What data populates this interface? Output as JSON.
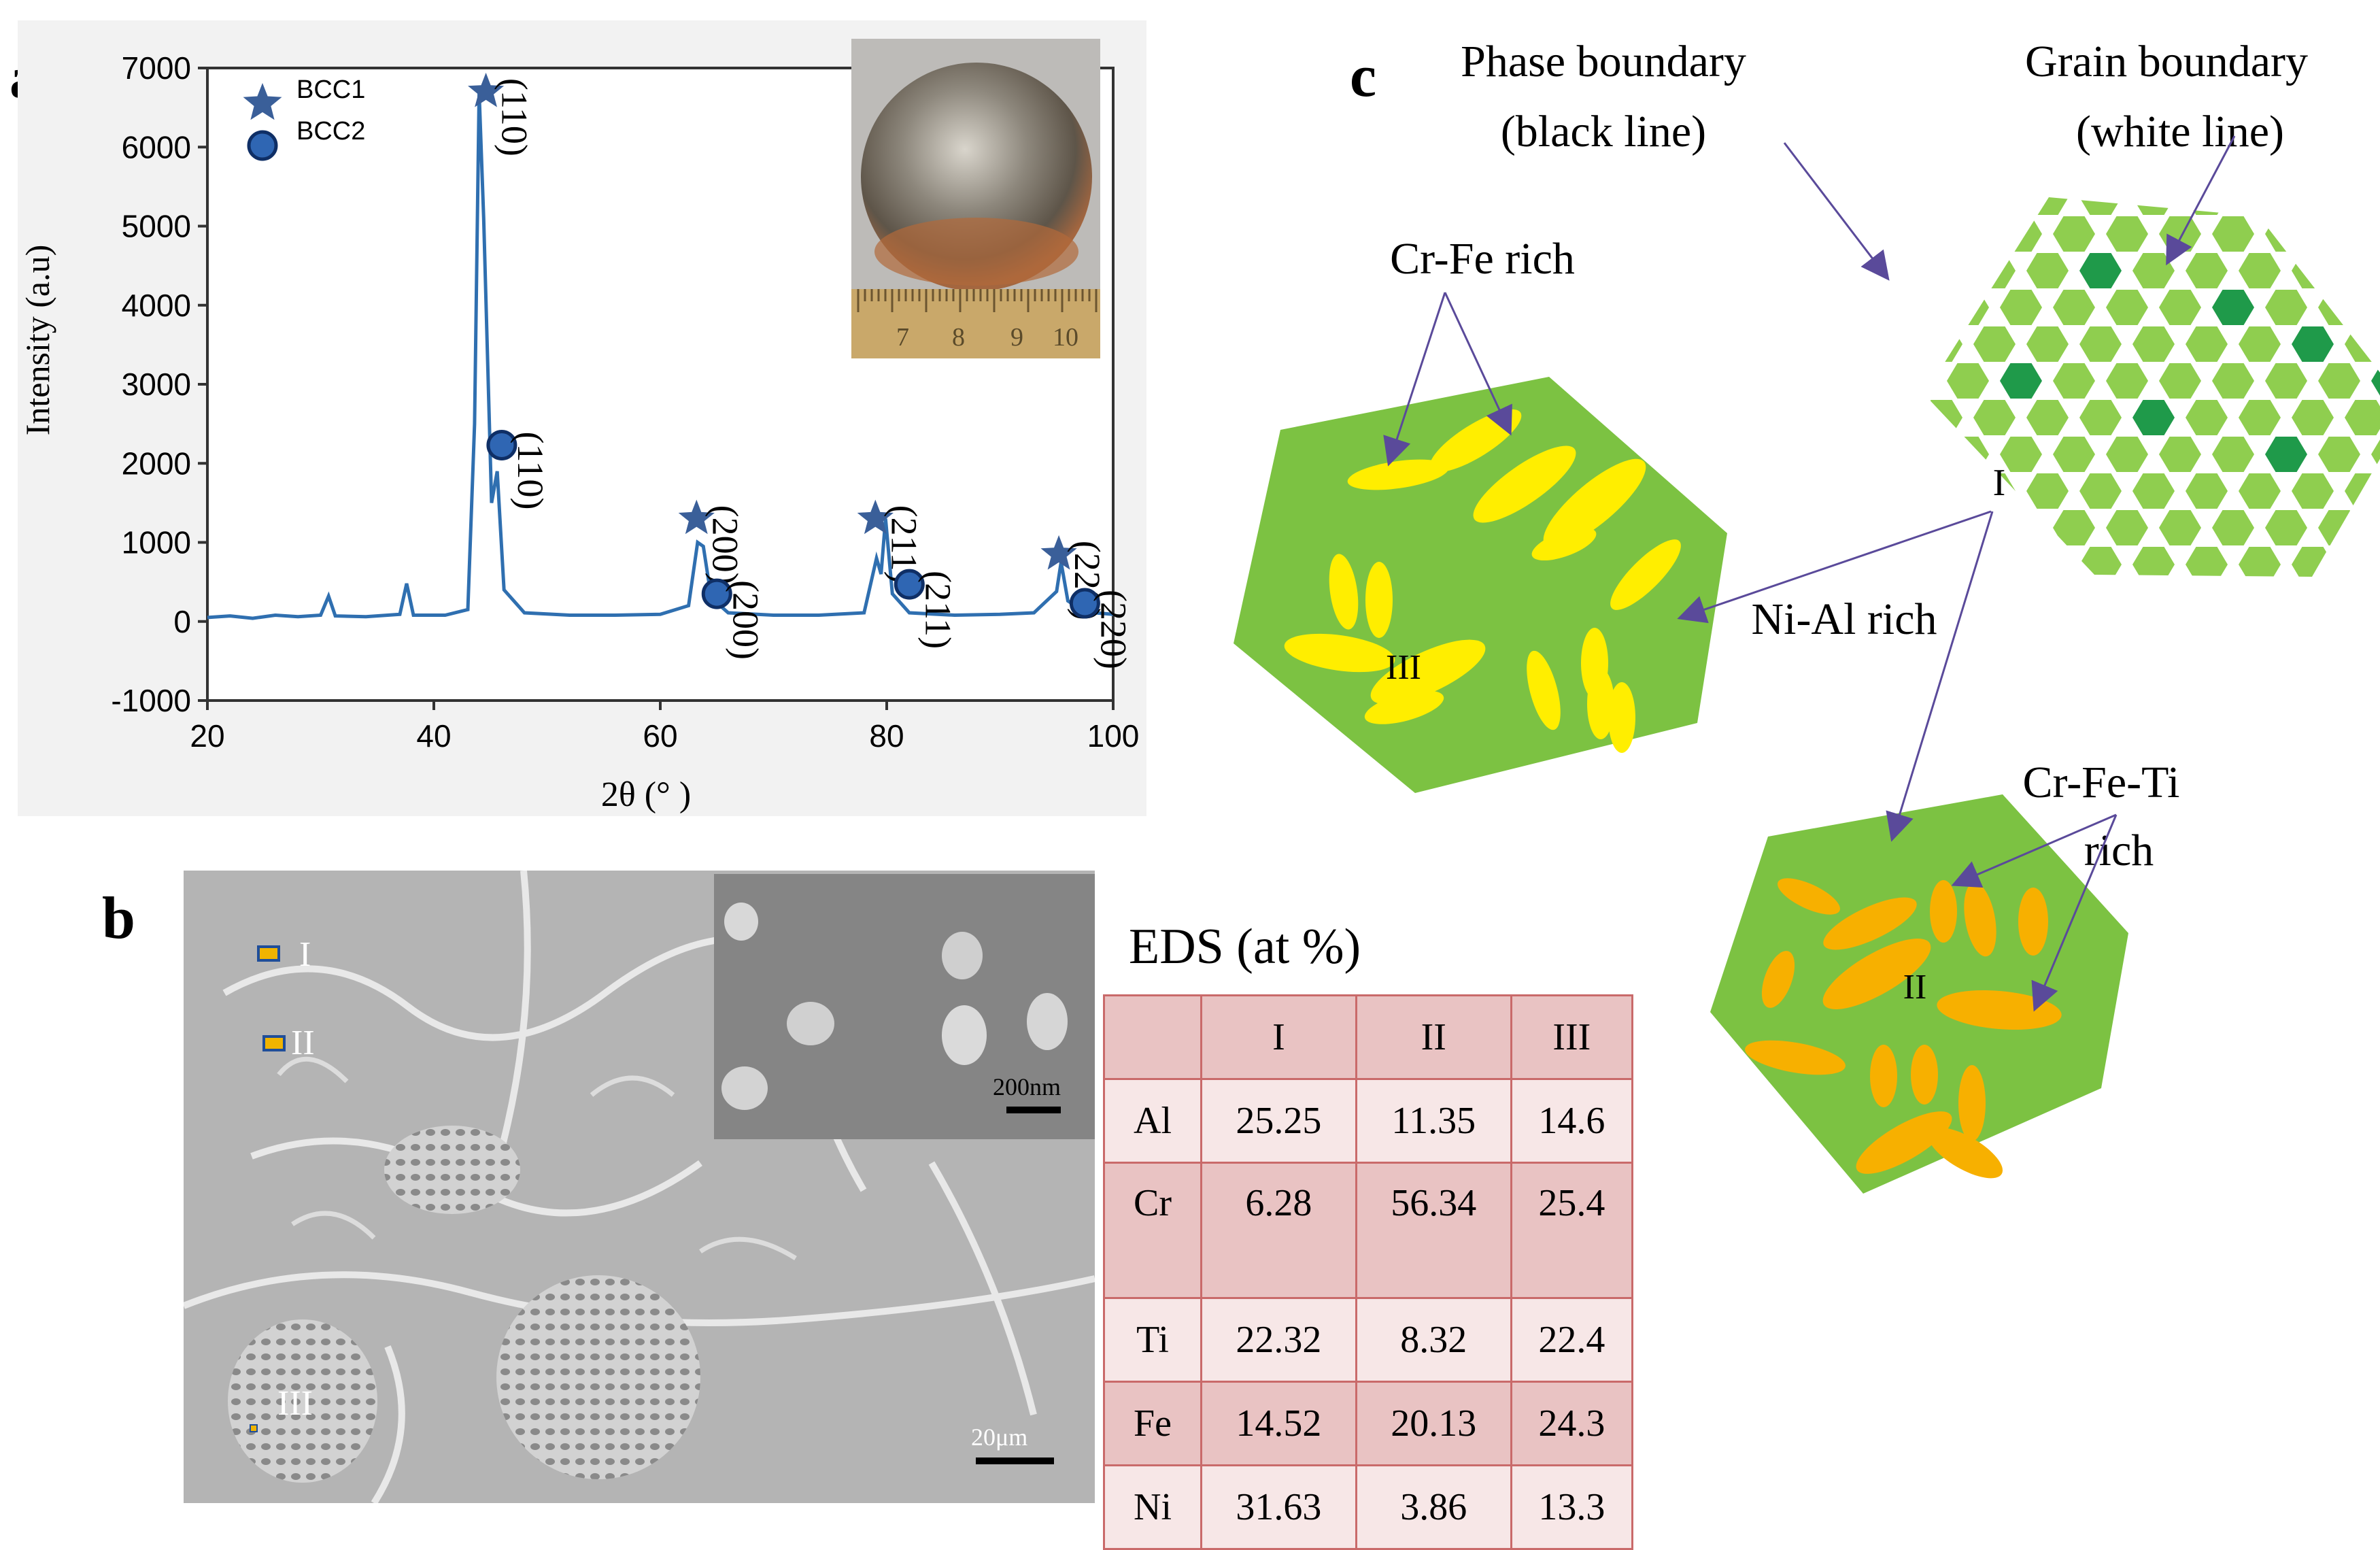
{
  "panels": {
    "a": "a",
    "b": "b",
    "c": "c"
  },
  "chart_data": {
    "type": "line",
    "xlabel": "2θ (° )",
    "ylabel": "Intensity (a.u)",
    "xlim": [
      20,
      100
    ],
    "ylim": [
      -1000,
      7000
    ],
    "xticks": [
      20,
      40,
      60,
      80,
      100
    ],
    "yticks": [
      -1000,
      0,
      1000,
      2000,
      3000,
      4000,
      5000,
      6000,
      7000
    ],
    "line_color": "#2f6fb0",
    "grid": false,
    "legend_position": "top-left",
    "legend": [
      {
        "name": "BCC1",
        "marker": "star-icon",
        "color": "#3a5f99"
      },
      {
        "name": "BCC2",
        "marker": "circle-icon",
        "color": "#2f66b3"
      }
    ],
    "series": [
      {
        "points": [
          [
            20,
            50
          ],
          [
            22,
            70
          ],
          [
            24,
            40
          ],
          [
            26,
            80
          ],
          [
            28,
            60
          ],
          [
            30,
            80
          ],
          [
            30.7,
            320
          ],
          [
            31.3,
            70
          ],
          [
            34,
            60
          ],
          [
            37,
            90
          ],
          [
            37.6,
            480
          ],
          [
            38.2,
            80
          ],
          [
            41,
            80
          ],
          [
            43.0,
            150
          ],
          [
            43.6,
            2500
          ],
          [
            44.0,
            6700
          ],
          [
            44.4,
            5100
          ],
          [
            45.1,
            1500
          ],
          [
            45.6,
            1900
          ],
          [
            46.2,
            400
          ],
          [
            48,
            110
          ],
          [
            52,
            80
          ],
          [
            56,
            80
          ],
          [
            60,
            90
          ],
          [
            62.5,
            200
          ],
          [
            63.3,
            1000
          ],
          [
            63.8,
            950
          ],
          [
            64.5,
            300
          ],
          [
            66,
            110
          ],
          [
            70,
            80
          ],
          [
            74,
            80
          ],
          [
            78,
            110
          ],
          [
            79.1,
            800
          ],
          [
            79.5,
            600
          ],
          [
            79.9,
            1300
          ],
          [
            80.5,
            350
          ],
          [
            82,
            110
          ],
          [
            86,
            80
          ],
          [
            90,
            90
          ],
          [
            93,
            110
          ],
          [
            95.0,
            380
          ],
          [
            95.4,
            750
          ],
          [
            96.0,
            260
          ],
          [
            97.5,
            120
          ],
          [
            100,
            90
          ]
        ]
      }
    ],
    "markers": [
      {
        "phase": "BCC1",
        "x": 44.6,
        "y": 6700,
        "label": "(110)"
      },
      {
        "phase": "BCC2",
        "x": 46.0,
        "y": 2230,
        "label": "(110)"
      },
      {
        "phase": "BCC1",
        "x": 63.2,
        "y": 1300,
        "label": "(200)"
      },
      {
        "phase": "BCC2",
        "x": 65.0,
        "y": 350,
        "label": "(200)"
      },
      {
        "phase": "BCC1",
        "x": 79.0,
        "y": 1300,
        "label": "(211)"
      },
      {
        "phase": "BCC2",
        "x": 82.0,
        "y": 470,
        "label": "(211)"
      },
      {
        "phase": "BCC1",
        "x": 95.2,
        "y": 850,
        "label": "(220)"
      },
      {
        "phase": "BCC2",
        "x": 97.5,
        "y": 230,
        "label": "(220)"
      }
    ],
    "inset_ruler_labels": [
      "7",
      "8",
      "9",
      "10"
    ]
  },
  "sem": {
    "regions": [
      "I",
      "II",
      "III"
    ],
    "scale_main": "20μm",
    "scale_inset": "200nm"
  },
  "eds": {
    "title": "EDS (at %)",
    "columns": [
      "",
      "I",
      "II",
      "III"
    ],
    "rows": [
      {
        "el": "Al",
        "v": [
          "25.25",
          "11.35",
          "14.6"
        ]
      },
      {
        "el": "Cr",
        "v": [
          "6.28",
          "56.34",
          "25.4"
        ]
      },
      {
        "el": "Ti",
        "v": [
          "22.32",
          "8.32",
          "22.4"
        ]
      },
      {
        "el": "Fe",
        "v": [
          "14.52",
          "20.13",
          "24.3"
        ]
      },
      {
        "el": "Ni",
        "v": [
          "31.63",
          "3.86",
          "13.3"
        ]
      }
    ]
  },
  "schematic": {
    "phase_boundary": [
      "Phase boundary",
      "(black line)"
    ],
    "grain_boundary": [
      "Grain boundary",
      "(white line)"
    ],
    "cr_fe_rich": "Cr-Fe  rich",
    "ni_al_rich": "Ni-Al rich",
    "cr_fe_ti_rich": [
      "Cr-Fe-Ti",
      "rich"
    ],
    "region_I": "I",
    "region_II": "II",
    "region_III": "III",
    "colors": {
      "matrix": "#7cc242",
      "grain": "#8fce4f",
      "dark_grain": "#1f9a4a",
      "yellow": "#ffee00",
      "orange": "#f7b000",
      "arrow": "#5a4a9a"
    }
  }
}
